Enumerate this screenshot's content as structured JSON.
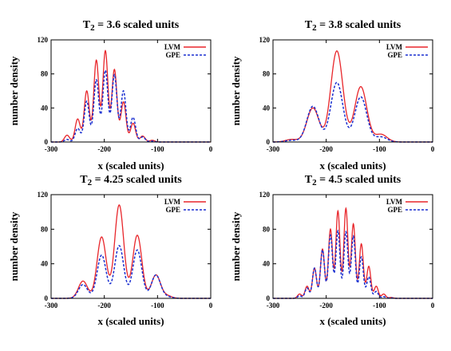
{
  "chart_data": [
    {
      "type": "line",
      "title": "T₂ = 3.6 scaled units",
      "xlabel": "x (scaled units)",
      "ylabel": "number density",
      "xlim": [
        -300,
        0
      ],
      "ylim": [
        0,
        120
      ],
      "xticks": [
        "-300",
        "-200",
        "-100",
        "0"
      ],
      "yticks": [
        "0",
        "40",
        "80",
        "120"
      ],
      "legend": "top-right",
      "series": [
        {
          "name": "LVM",
          "color": "#e8262b",
          "style": "solid",
          "envelope": [
            -300,
            -95
          ],
          "peaks": [
            [
              -270,
              8
            ],
            [
              -250,
              27
            ],
            [
              -233,
              60
            ],
            [
              -215,
              96
            ],
            [
              -198,
              107
            ],
            [
              -181,
              85
            ],
            [
              -164,
              47
            ],
            [
              -146,
              22
            ],
            [
              -128,
              7
            ],
            [
              -110,
              2
            ]
          ],
          "floor": 0
        },
        {
          "name": "GPE",
          "color": "#1a2fd0",
          "style": "dashed",
          "envelope": [
            -300,
            -95
          ],
          "peaks": [
            [
              -270,
              3
            ],
            [
              -250,
              16
            ],
            [
              -233,
              48
            ],
            [
              -215,
              73
            ],
            [
              -198,
              84
            ],
            [
              -181,
              79
            ],
            [
              -164,
              60
            ],
            [
              -146,
              29
            ],
            [
              -128,
              6
            ],
            [
              -110,
              1
            ]
          ],
          "floor": 0
        }
      ]
    },
    {
      "type": "line",
      "title": "T₂ = 3.8 scaled units",
      "xlabel": "x (scaled units)",
      "ylabel": "number density",
      "xlim": [
        -300,
        0
      ],
      "ylim": [
        0,
        120
      ],
      "xticks": [
        "-300",
        "-200",
        "-100",
        "0"
      ],
      "yticks": [
        "0",
        "40",
        "80",
        "120"
      ],
      "legend": "top-right",
      "series": [
        {
          "name": "LVM",
          "color": "#e8262b",
          "style": "solid",
          "envelope": [
            -300,
            -85
          ],
          "peaks": [
            [
              -265,
              3
            ],
            [
              -225,
              40
            ],
            [
              -180,
              107
            ],
            [
              -135,
              65
            ],
            [
              -97,
              9
            ]
          ],
          "floor": 0
        },
        {
          "name": "GPE",
          "color": "#1a2fd0",
          "style": "dashed",
          "envelope": [
            -300,
            -85
          ],
          "peaks": [
            [
              -265,
              2
            ],
            [
              -225,
              42
            ],
            [
              -180,
              70
            ],
            [
              -135,
              53
            ],
            [
              -97,
              6
            ]
          ],
          "floor": 0
        }
      ]
    },
    {
      "type": "line",
      "title": "T₂ = 4.25 scaled units",
      "xlabel": "x (scaled units)",
      "ylabel": "number density",
      "xlim": [
        -300,
        0
      ],
      "ylim": [
        0,
        120
      ],
      "xticks": [
        "-300",
        "-200",
        "-100",
        "0"
      ],
      "yticks": [
        "0",
        "40",
        "80",
        "120"
      ],
      "legend": "top-right",
      "series": [
        {
          "name": "LVM",
          "color": "#e8262b",
          "style": "solid",
          "envelope": [
            -300,
            -75
          ],
          "peaks": [
            [
              -240,
              20
            ],
            [
              -205,
              71
            ],
            [
              -172,
              108
            ],
            [
              -138,
              73
            ],
            [
              -103,
              27
            ],
            [
              -82,
              3
            ]
          ],
          "floor": 0
        },
        {
          "name": "GPE",
          "color": "#1a2fd0",
          "style": "dashed",
          "envelope": [
            -300,
            -75
          ],
          "peaks": [
            [
              -240,
              16
            ],
            [
              -205,
              50
            ],
            [
              -172,
              61
            ],
            [
              -138,
              56
            ],
            [
              -103,
              27
            ],
            [
              -82,
              2
            ]
          ],
          "floor": 0
        }
      ]
    },
    {
      "type": "line",
      "title": "T₂ = 4.5 scaled units",
      "xlabel": "x (scaled units)",
      "ylabel": "number density",
      "xlim": [
        -300,
        0
      ],
      "ylim": [
        0,
        120
      ],
      "xticks": [
        "-300",
        "-200",
        "-100",
        "0"
      ],
      "yticks": [
        "0",
        "40",
        "80",
        "120"
      ],
      "legend": "top-right",
      "series": [
        {
          "name": "LVM",
          "color": "#e8262b",
          "style": "solid",
          "envelope": [
            -300,
            -45
          ],
          "peaks": [
            [
              -250,
              5
            ],
            [
              -236,
              14
            ],
            [
              -222,
              35
            ],
            [
              -207,
              57
            ],
            [
              -192,
              80
            ],
            [
              -178,
              101
            ],
            [
              -163,
              104
            ],
            [
              -149,
              86
            ],
            [
              -134,
              63
            ],
            [
              -120,
              37
            ],
            [
              -106,
              14
            ],
            [
              -92,
              5
            ],
            [
              -78,
              1
            ]
          ],
          "floor": 0
        },
        {
          "name": "GPE",
          "color": "#1a2fd0",
          "style": "dashed",
          "envelope": [
            -300,
            -45
          ],
          "peaks": [
            [
              -250,
              3
            ],
            [
              -236,
              12
            ],
            [
              -222,
              35
            ],
            [
              -207,
              56
            ],
            [
              -192,
              73
            ],
            [
              -178,
              78
            ],
            [
              -163,
              77
            ],
            [
              -149,
              72
            ],
            [
              -134,
              48
            ],
            [
              -120,
              25
            ],
            [
              -106,
              8
            ],
            [
              -92,
              2
            ],
            [
              -78,
              0.5
            ]
          ],
          "floor": 0
        }
      ]
    }
  ]
}
